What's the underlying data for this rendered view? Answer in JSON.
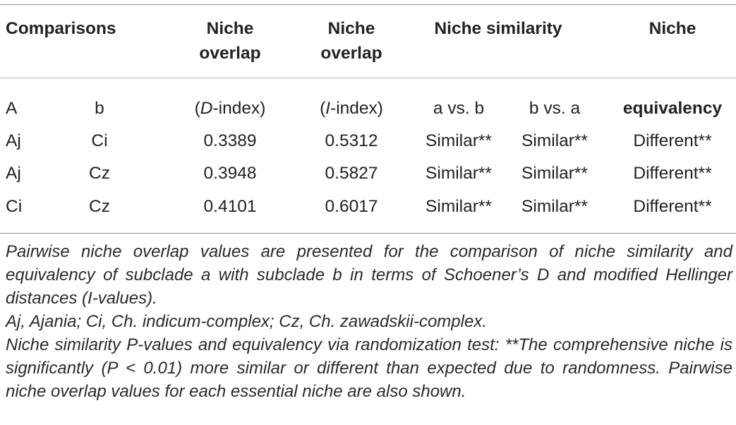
{
  "table": {
    "headers": {
      "comparisons": "Comparisons",
      "d_overlap": [
        "Niche",
        "overlap"
      ],
      "i_overlap": [
        "Niche",
        "overlap"
      ],
      "similarity": "Niche similarity",
      "equivalency": "Niche"
    },
    "subheader": {
      "a": "A",
      "b": "b",
      "d_prefix": "(",
      "d_letter": "D",
      "d_suffix": "-index)",
      "i_prefix": "(",
      "i_letter": "I",
      "i_suffix": "-index)",
      "a_vs_b": "a vs. b",
      "b_vs_a": "b vs. a",
      "equivalency": "equivalency"
    },
    "rows": [
      {
        "a": "Aj",
        "b": "Ci",
        "d": "0.3389",
        "i": "0.5312",
        "sim_ab": "Similar**",
        "sim_ba": "Similar**",
        "equiv": "Different**"
      },
      {
        "a": "Aj",
        "b": "Cz",
        "d": "0.3948",
        "i": "0.5827",
        "sim_ab": "Similar**",
        "sim_ba": "Similar**",
        "equiv": "Different**"
      },
      {
        "a": "Ci",
        "b": "Cz",
        "d": "0.4101",
        "i": "0.6017",
        "sim_ab": "Similar**",
        "sim_ba": "Similar**",
        "equiv": "Different**"
      }
    ]
  },
  "notes": [
    "Pairwise niche overlap values are presented for the comparison of niche similarity and equivalency of subclade a with subclade b in terms of Schoener’s D and modified Hellinger distances (I-values).",
    "Aj, Ajania; Ci, Ch. indicum-complex; Cz, Ch. zawadskii-complex.",
    "Niche similarity P-values and equivalency via randomization test: **The comprehensive niche is significantly (P < 0.01) more similar or different than expected due to randomness. Pairwise niche overlap values for each essential niche are also shown."
  ]
}
